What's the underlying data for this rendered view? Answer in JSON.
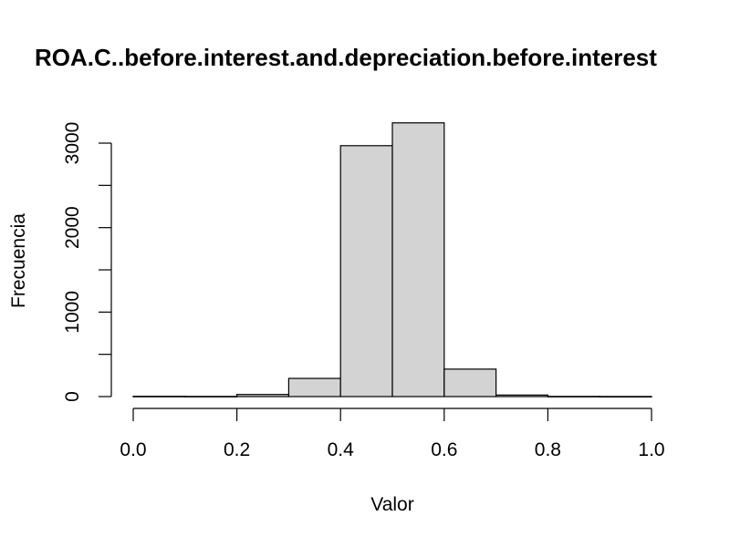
{
  "chart_data": {
    "type": "bar",
    "title": "ROA.C..before.interest.and.depreciation.before.interest",
    "xlabel": "Valor",
    "ylabel": "Frecuencia",
    "bins": [
      {
        "start": 0.0,
        "end": 0.1,
        "count": 3
      },
      {
        "start": 0.1,
        "end": 0.2,
        "count": 2
      },
      {
        "start": 0.2,
        "end": 0.3,
        "count": 25
      },
      {
        "start": 0.3,
        "end": 0.4,
        "count": 215
      },
      {
        "start": 0.4,
        "end": 0.5,
        "count": 2970
      },
      {
        "start": 0.5,
        "end": 0.6,
        "count": 3240
      },
      {
        "start": 0.6,
        "end": 0.7,
        "count": 325
      },
      {
        "start": 0.7,
        "end": 0.8,
        "count": 18
      },
      {
        "start": 0.8,
        "end": 0.9,
        "count": 2
      },
      {
        "start": 0.9,
        "end": 1.0,
        "count": 1
      }
    ],
    "xlim": [
      0.0,
      1.0
    ],
    "ylim": [
      0,
      3000
    ],
    "x_ticks": [
      "0.0",
      "0.2",
      "0.4",
      "0.6",
      "0.8",
      "1.0"
    ],
    "y_ticks": [
      "0",
      "1000",
      "2000",
      "3000"
    ],
    "bar_fill": "#d3d3d3",
    "bar_stroke": "#000000"
  }
}
